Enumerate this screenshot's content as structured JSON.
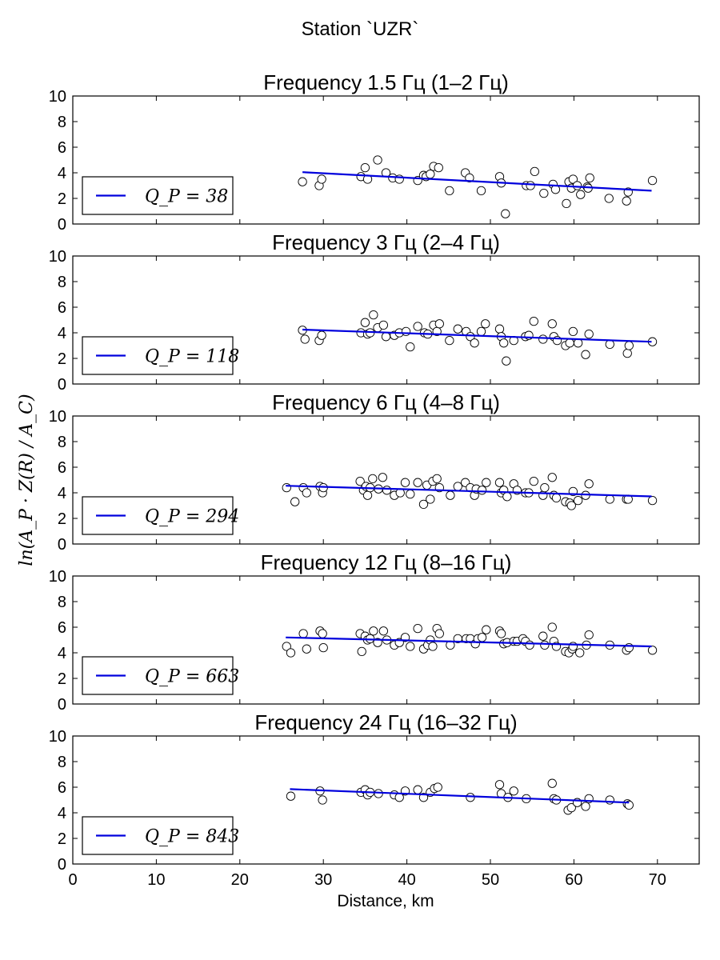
{
  "figure": {
    "suptitle": "Station `UZR`",
    "xlabel": "Distance, km",
    "ylabel": "ln(A_P · Z(R) / A_C)"
  },
  "colors": {
    "fit_line": "#0000dd",
    "marker_face": "#ffffff",
    "marker_edge": "#000000"
  },
  "chart_data": [
    {
      "type": "scatter",
      "title": "Frequency 1.5 Гц (1–2 Гц)",
      "xlim": [
        0,
        75
      ],
      "ylim": [
        0,
        10
      ],
      "xticks": [
        "0",
        "10",
        "20",
        "30",
        "40",
        "50",
        "60",
        "70"
      ],
      "yticks": [
        "0",
        "2",
        "4",
        "6",
        "8",
        "10"
      ],
      "show_xticklabels": false,
      "legend": {
        "label": "Q_P = 38",
        "placement": "lower-left"
      },
      "fit": {
        "x": [
          27.5,
          69.3
        ],
        "y": [
          4.05,
          2.6
        ]
      },
      "points": [
        [
          27.5,
          3.3
        ],
        [
          29.5,
          3.0
        ],
        [
          29.8,
          3.5
        ],
        [
          34.5,
          3.7
        ],
        [
          35.0,
          4.4
        ],
        [
          35.3,
          3.5
        ],
        [
          36.5,
          5.0
        ],
        [
          37.5,
          4.0
        ],
        [
          38.3,
          3.6
        ],
        [
          39.1,
          3.5
        ],
        [
          41.3,
          3.4
        ],
        [
          42.0,
          3.8
        ],
        [
          42.3,
          3.7
        ],
        [
          42.8,
          3.9
        ],
        [
          43.2,
          4.5
        ],
        [
          43.8,
          4.4
        ],
        [
          45.1,
          2.6
        ],
        [
          47.0,
          4.0
        ],
        [
          47.5,
          3.6
        ],
        [
          48.9,
          2.6
        ],
        [
          51.1,
          3.7
        ],
        [
          51.3,
          3.2
        ],
        [
          51.8,
          0.8
        ],
        [
          54.3,
          3.0
        ],
        [
          54.8,
          3.0
        ],
        [
          55.3,
          4.1
        ],
        [
          56.4,
          2.4
        ],
        [
          57.5,
          3.1
        ],
        [
          57.8,
          2.7
        ],
        [
          59.1,
          1.6
        ],
        [
          59.4,
          3.3
        ],
        [
          59.7,
          2.8
        ],
        [
          59.9,
          3.5
        ],
        [
          60.4,
          3.0
        ],
        [
          60.8,
          2.3
        ],
        [
          61.6,
          2.9
        ],
        [
          61.7,
          2.8
        ],
        [
          61.9,
          3.6
        ],
        [
          64.2,
          2.0
        ],
        [
          66.3,
          1.8
        ],
        [
          66.5,
          2.5
        ],
        [
          69.4,
          3.4
        ]
      ]
    },
    {
      "type": "scatter",
      "title": "Frequency 3 Гц (2–4 Гц)",
      "xlim": [
        0,
        75
      ],
      "ylim": [
        0,
        10
      ],
      "xticks": [
        "0",
        "10",
        "20",
        "30",
        "40",
        "50",
        "60",
        "70"
      ],
      "yticks": [
        "0",
        "2",
        "4",
        "6",
        "8",
        "10"
      ],
      "show_xticklabels": false,
      "legend": {
        "label": "Q_P = 118",
        "placement": "lower-left"
      },
      "fit": {
        "x": [
          27.5,
          69.3
        ],
        "y": [
          4.25,
          3.3
        ]
      },
      "points": [
        [
          27.5,
          4.2
        ],
        [
          27.8,
          3.5
        ],
        [
          29.5,
          3.4
        ],
        [
          29.8,
          3.8
        ],
        [
          34.5,
          4.0
        ],
        [
          35.0,
          4.8
        ],
        [
          35.3,
          3.9
        ],
        [
          35.6,
          4.0
        ],
        [
          36.0,
          5.4
        ],
        [
          36.5,
          4.4
        ],
        [
          37.2,
          4.6
        ],
        [
          37.5,
          3.7
        ],
        [
          38.5,
          3.8
        ],
        [
          39.1,
          4.0
        ],
        [
          39.9,
          4.1
        ],
        [
          40.4,
          2.9
        ],
        [
          41.3,
          4.5
        ],
        [
          42.1,
          4.0
        ],
        [
          42.5,
          3.9
        ],
        [
          43.2,
          4.6
        ],
        [
          43.6,
          4.1
        ],
        [
          43.9,
          4.7
        ],
        [
          45.1,
          3.4
        ],
        [
          46.1,
          4.3
        ],
        [
          47.1,
          4.1
        ],
        [
          47.6,
          3.7
        ],
        [
          48.1,
          3.2
        ],
        [
          48.9,
          4.1
        ],
        [
          49.4,
          4.7
        ],
        [
          51.1,
          4.3
        ],
        [
          51.3,
          3.7
        ],
        [
          51.6,
          3.2
        ],
        [
          51.9,
          1.8
        ],
        [
          52.8,
          3.4
        ],
        [
          54.2,
          3.7
        ],
        [
          54.6,
          3.8
        ],
        [
          55.2,
          4.9
        ],
        [
          56.3,
          3.5
        ],
        [
          57.4,
          4.7
        ],
        [
          57.6,
          3.7
        ],
        [
          58.0,
          3.4
        ],
        [
          59.0,
          3.0
        ],
        [
          59.5,
          3.2
        ],
        [
          59.9,
          4.1
        ],
        [
          60.5,
          3.2
        ],
        [
          61.4,
          2.3
        ],
        [
          61.8,
          3.9
        ],
        [
          64.3,
          3.1
        ],
        [
          66.4,
          2.4
        ],
        [
          66.6,
          3.0
        ],
        [
          69.4,
          3.3
        ]
      ]
    },
    {
      "type": "scatter",
      "title": "Frequency 6 Гц (4–8 Гц)",
      "xlim": [
        0,
        75
      ],
      "ylim": [
        0,
        10
      ],
      "xticks": [
        "0",
        "10",
        "20",
        "30",
        "40",
        "50",
        "60",
        "70"
      ],
      "yticks": [
        "0",
        "2",
        "4",
        "6",
        "8",
        "10"
      ],
      "show_xticklabels": false,
      "legend": {
        "label": "Q_P = 294",
        "placement": "lower-left"
      },
      "fit": {
        "x": [
          25.5,
          69.3
        ],
        "y": [
          4.55,
          3.72
        ]
      },
      "points": [
        [
          25.6,
          4.4
        ],
        [
          26.6,
          3.3
        ],
        [
          27.6,
          4.4
        ],
        [
          28.0,
          4.0
        ],
        [
          29.6,
          4.5
        ],
        [
          29.9,
          4.0
        ],
        [
          30.0,
          4.4
        ],
        [
          34.4,
          4.9
        ],
        [
          34.8,
          4.2
        ],
        [
          35.1,
          4.5
        ],
        [
          35.3,
          3.8
        ],
        [
          35.6,
          4.4
        ],
        [
          35.9,
          5.1
        ],
        [
          36.6,
          4.3
        ],
        [
          37.1,
          5.2
        ],
        [
          37.6,
          4.2
        ],
        [
          38.5,
          3.8
        ],
        [
          39.2,
          4.0
        ],
        [
          39.8,
          4.8
        ],
        [
          40.4,
          3.9
        ],
        [
          41.3,
          4.8
        ],
        [
          42.0,
          3.1
        ],
        [
          42.4,
          4.6
        ],
        [
          42.8,
          3.5
        ],
        [
          43.1,
          4.9
        ],
        [
          43.6,
          5.1
        ],
        [
          43.9,
          4.4
        ],
        [
          45.2,
          3.8
        ],
        [
          46.1,
          4.5
        ],
        [
          47.0,
          4.8
        ],
        [
          47.6,
          4.4
        ],
        [
          48.1,
          3.8
        ],
        [
          48.3,
          4.3
        ],
        [
          49.0,
          4.2
        ],
        [
          49.5,
          4.8
        ],
        [
          51.1,
          4.8
        ],
        [
          51.3,
          4.0
        ],
        [
          51.6,
          4.2
        ],
        [
          52.0,
          3.7
        ],
        [
          52.8,
          4.7
        ],
        [
          53.2,
          4.2
        ],
        [
          54.2,
          4.0
        ],
        [
          54.6,
          4.0
        ],
        [
          55.2,
          4.9
        ],
        [
          56.3,
          3.8
        ],
        [
          56.5,
          4.4
        ],
        [
          57.4,
          5.2
        ],
        [
          57.6,
          3.8
        ],
        [
          57.9,
          3.6
        ],
        [
          59.0,
          3.3
        ],
        [
          59.5,
          3.2
        ],
        [
          59.7,
          3.0
        ],
        [
          59.9,
          4.1
        ],
        [
          60.5,
          3.4
        ],
        [
          61.4,
          3.8
        ],
        [
          61.8,
          4.7
        ],
        [
          64.3,
          3.5
        ],
        [
          66.3,
          3.5
        ],
        [
          66.5,
          3.5
        ],
        [
          69.4,
          3.4
        ]
      ]
    },
    {
      "type": "scatter",
      "title": "Frequency 12 Гц (8–16 Гц)",
      "xlim": [
        0,
        75
      ],
      "ylim": [
        0,
        10
      ],
      "xticks": [
        "0",
        "10",
        "20",
        "30",
        "40",
        "50",
        "60",
        "70"
      ],
      "yticks": [
        "0",
        "2",
        "4",
        "6",
        "8",
        "10"
      ],
      "show_xticklabels": false,
      "legend": {
        "label": "Q_P = 663",
        "placement": "lower-left"
      },
      "fit": {
        "x": [
          25.5,
          69.3
        ],
        "y": [
          5.2,
          4.5
        ]
      },
      "points": [
        [
          25.6,
          4.5
        ],
        [
          26.1,
          4.0
        ],
        [
          27.6,
          5.5
        ],
        [
          28.0,
          4.3
        ],
        [
          29.6,
          5.7
        ],
        [
          29.9,
          5.5
        ],
        [
          30.0,
          4.4
        ],
        [
          34.4,
          5.5
        ],
        [
          34.6,
          4.1
        ],
        [
          35.0,
          5.3
        ],
        [
          35.3,
          5.0
        ],
        [
          35.6,
          5.1
        ],
        [
          36.0,
          5.7
        ],
        [
          36.5,
          4.8
        ],
        [
          37.2,
          5.7
        ],
        [
          37.6,
          5.0
        ],
        [
          38.5,
          4.6
        ],
        [
          39.1,
          4.8
        ],
        [
          39.8,
          5.2
        ],
        [
          40.4,
          4.5
        ],
        [
          41.3,
          5.9
        ],
        [
          42.0,
          4.3
        ],
        [
          42.5,
          4.6
        ],
        [
          42.8,
          5.0
        ],
        [
          43.1,
          4.5
        ],
        [
          43.6,
          5.9
        ],
        [
          43.9,
          5.5
        ],
        [
          45.2,
          4.6
        ],
        [
          46.1,
          5.1
        ],
        [
          47.1,
          5.1
        ],
        [
          47.6,
          5.1
        ],
        [
          48.2,
          4.7
        ],
        [
          48.5,
          5.1
        ],
        [
          49.0,
          5.2
        ],
        [
          49.5,
          5.8
        ],
        [
          51.1,
          5.7
        ],
        [
          51.3,
          5.5
        ],
        [
          51.6,
          4.7
        ],
        [
          52.0,
          4.8
        ],
        [
          52.8,
          4.9
        ],
        [
          53.2,
          4.9
        ],
        [
          53.9,
          5.1
        ],
        [
          54.2,
          4.9
        ],
        [
          54.7,
          4.6
        ],
        [
          56.3,
          5.3
        ],
        [
          56.5,
          4.6
        ],
        [
          57.4,
          6.0
        ],
        [
          57.6,
          4.9
        ],
        [
          57.9,
          4.5
        ],
        [
          59.0,
          4.1
        ],
        [
          59.4,
          4.0
        ],
        [
          59.8,
          4.3
        ],
        [
          59.9,
          4.5
        ],
        [
          60.7,
          4.0
        ],
        [
          61.5,
          4.6
        ],
        [
          61.8,
          5.4
        ],
        [
          64.3,
          4.6
        ],
        [
          66.3,
          4.2
        ],
        [
          66.6,
          4.4
        ],
        [
          69.4,
          4.2
        ]
      ]
    },
    {
      "type": "scatter",
      "title": "Frequency 24 Гц (16–32 Гц)",
      "xlim": [
        0,
        75
      ],
      "ylim": [
        0,
        10
      ],
      "xticks": [
        "0",
        "10",
        "20",
        "30",
        "40",
        "50",
        "60",
        "70"
      ],
      "yticks": [
        "0",
        "2",
        "4",
        "6",
        "8",
        "10"
      ],
      "show_xticklabels": true,
      "legend": {
        "label": "Q_P = 843",
        "placement": "lower-left"
      },
      "fit": {
        "x": [
          26.0,
          66.6
        ],
        "y": [
          5.85,
          4.8
        ]
      },
      "points": [
        [
          26.1,
          5.3
        ],
        [
          29.6,
          5.7
        ],
        [
          29.9,
          5.0
        ],
        [
          34.5,
          5.6
        ],
        [
          35.0,
          5.8
        ],
        [
          35.3,
          5.4
        ],
        [
          35.6,
          5.6
        ],
        [
          36.6,
          5.5
        ],
        [
          38.5,
          5.4
        ],
        [
          39.1,
          5.2
        ],
        [
          39.8,
          5.7
        ],
        [
          41.3,
          5.8
        ],
        [
          42.0,
          5.2
        ],
        [
          42.8,
          5.6
        ],
        [
          43.3,
          5.9
        ],
        [
          43.7,
          6.0
        ],
        [
          47.6,
          5.2
        ],
        [
          51.1,
          6.2
        ],
        [
          51.3,
          5.5
        ],
        [
          52.1,
          5.2
        ],
        [
          52.8,
          5.7
        ],
        [
          54.3,
          5.1
        ],
        [
          57.4,
          6.3
        ],
        [
          57.6,
          5.1
        ],
        [
          57.9,
          5.0
        ],
        [
          59.3,
          4.2
        ],
        [
          59.7,
          4.4
        ],
        [
          60.4,
          4.8
        ],
        [
          61.4,
          4.5
        ],
        [
          61.8,
          5.1
        ],
        [
          64.3,
          5.0
        ],
        [
          66.4,
          4.7
        ],
        [
          66.6,
          4.6
        ]
      ]
    }
  ]
}
